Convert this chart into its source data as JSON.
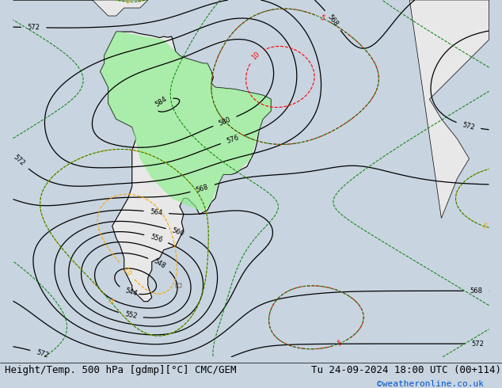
{
  "title_left": "Height/Temp. 500 hPa [gdmp][°C] CMC/GEM",
  "title_right": "Tu 24-09-2024 18:00 UTC (00+114)",
  "watermark": "©weatheronline.co.uk",
  "watermark_color": "#0055cc",
  "bg_color": "#d0d8e8",
  "land_color": "#e8e8e8",
  "green_land_color": "#90ee90",
  "title_font_size": 9,
  "watermark_font_size": 8,
  "fig_width": 6.34,
  "fig_height": 4.9,
  "dpi": 100
}
